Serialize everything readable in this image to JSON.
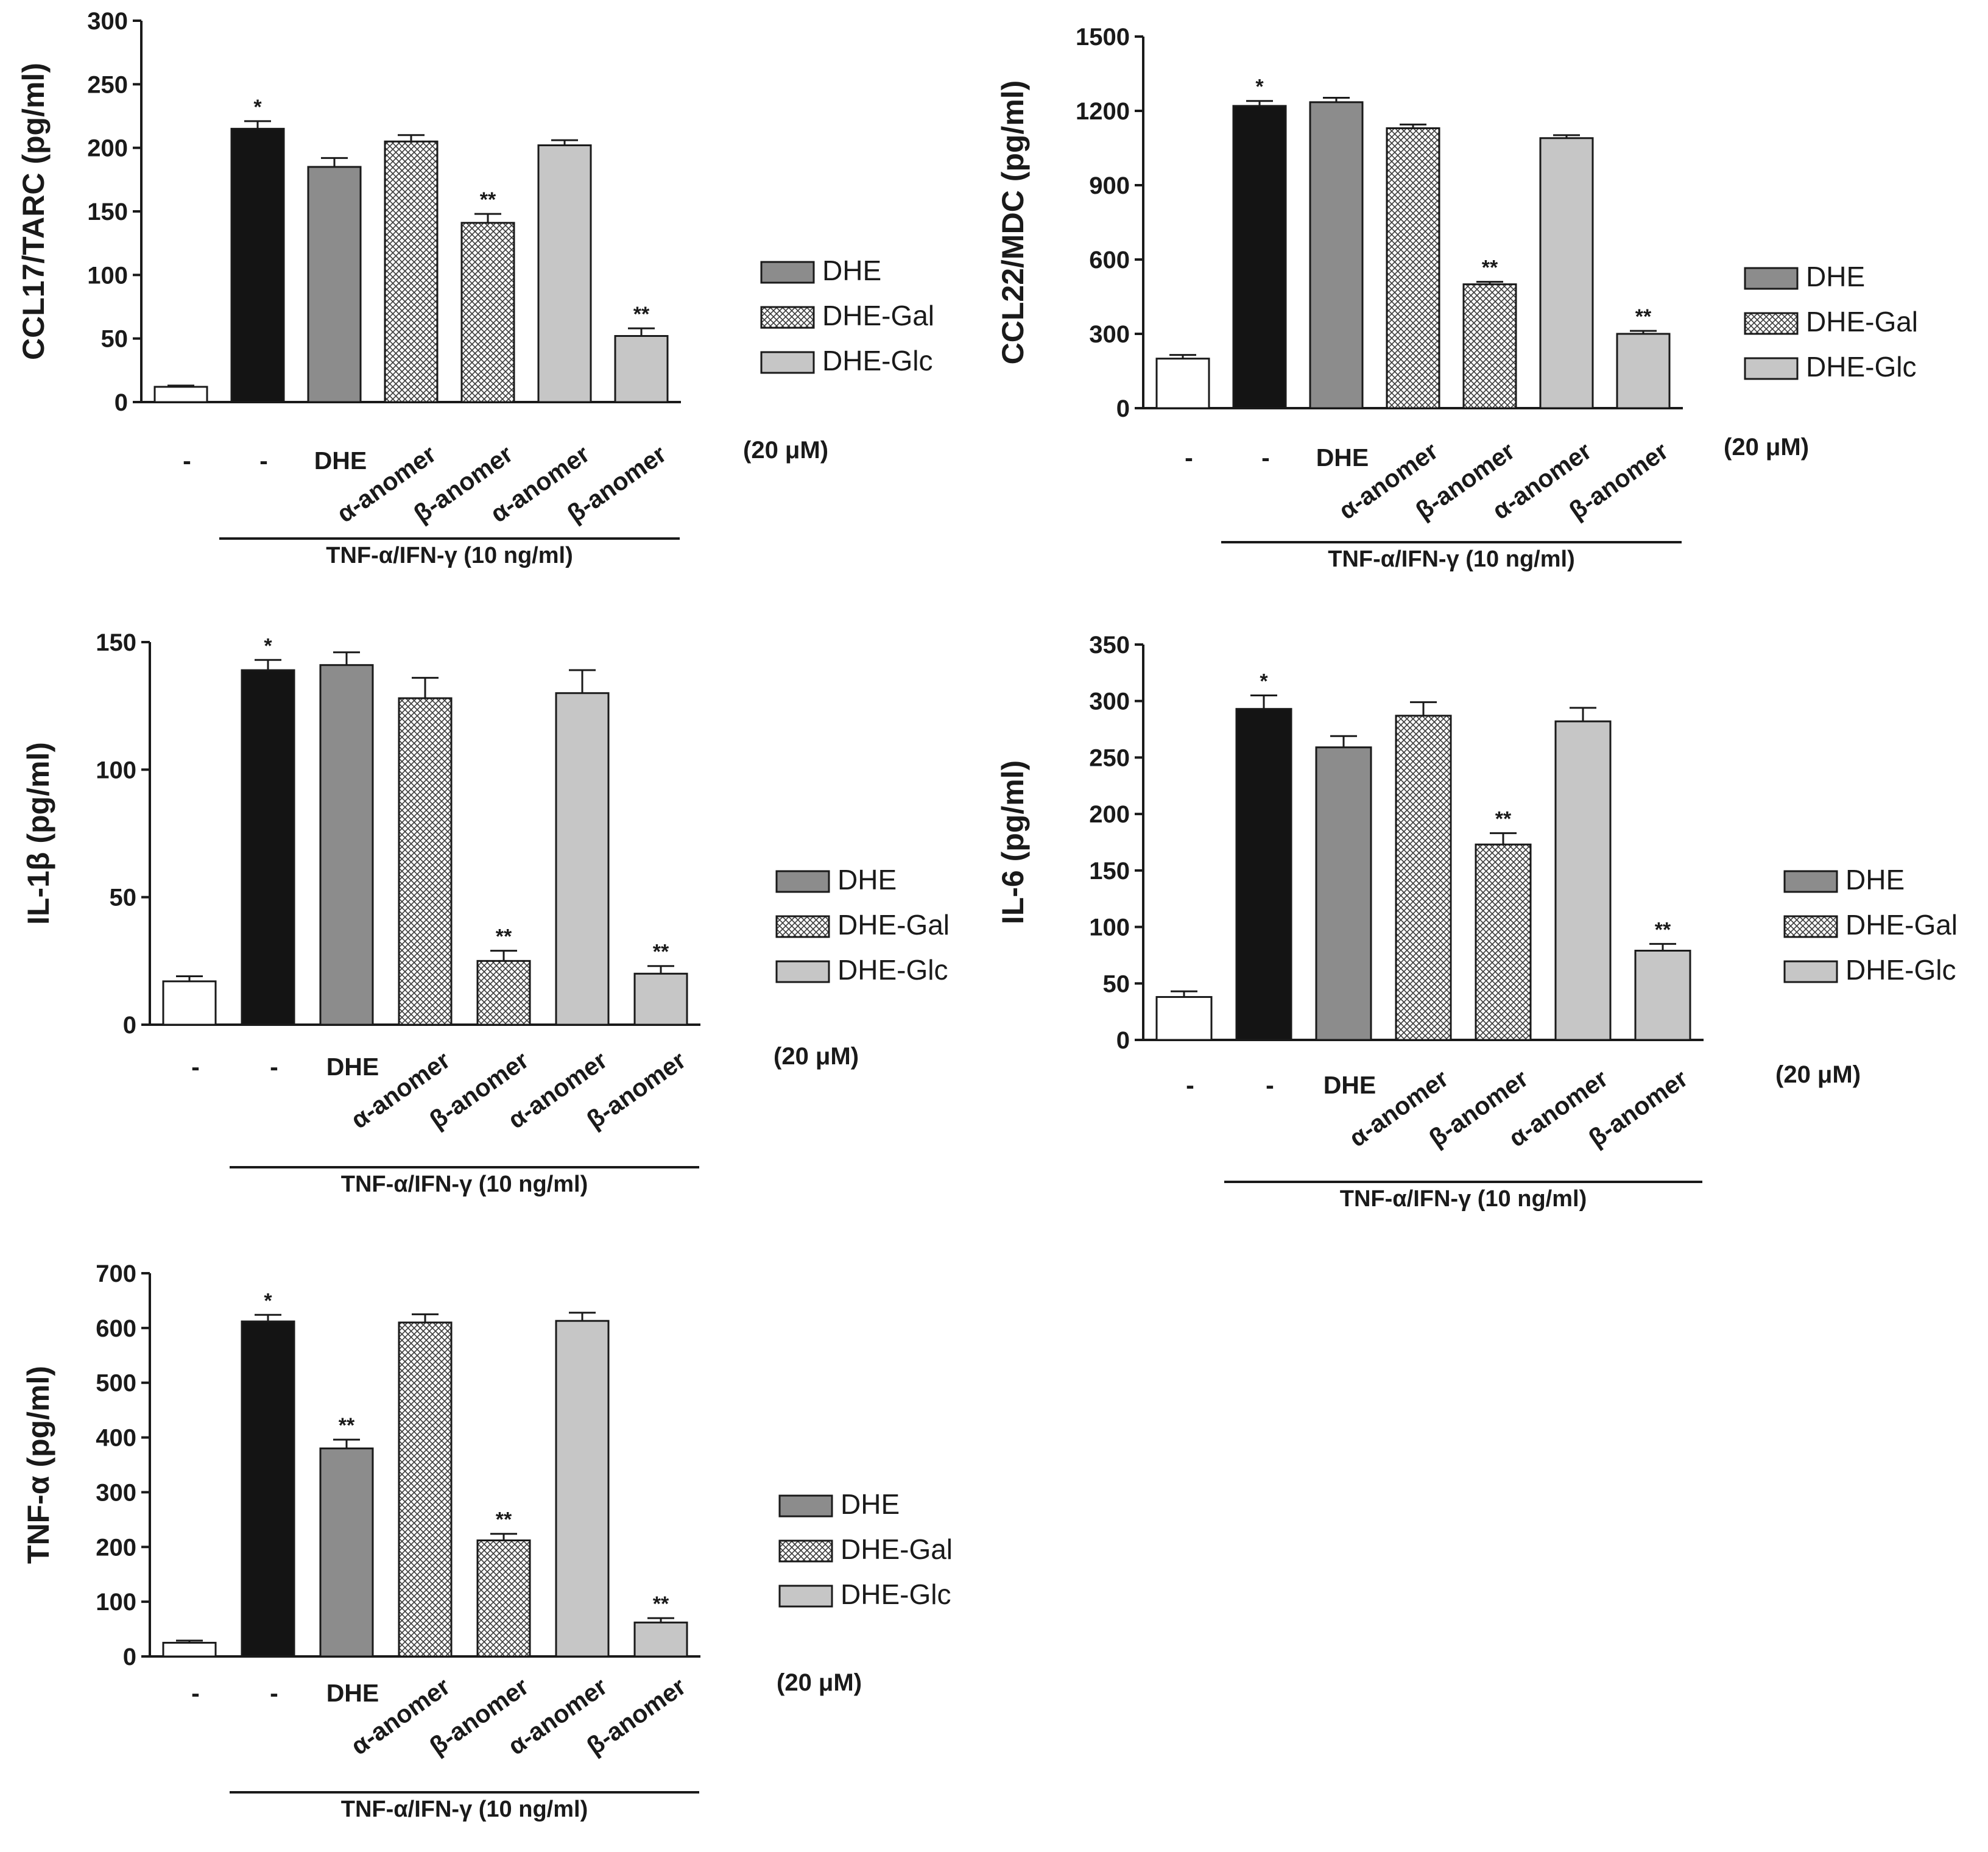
{
  "colors": {
    "control": "#ffffff",
    "tnf_ifn": "#141414",
    "DHE": "#8c8c8c",
    "DHE-Gal": "hatch",
    "DHE-Glc": "#c6c6c6",
    "axis": "#1a1a1a"
  },
  "legend": {
    "items": [
      "DHE",
      "DHE-Gal",
      "DHE-Glc"
    ]
  },
  "x_labels": {
    "categories": [
      "-",
      "-",
      "DHE",
      "α-anomer",
      "β-anomer",
      "α-anomer",
      "β-anomer"
    ],
    "concentration": "(20 μM)",
    "treatment": "TNF-α/IFN-γ (10 ng/ml)"
  },
  "chart_data": [
    {
      "type": "bar",
      "ylabel": "CCL17/TARC (pg/ml)",
      "ylim": [
        0,
        300
      ],
      "yticks": [
        0,
        50,
        100,
        150,
        200,
        250,
        300
      ],
      "categories": [
        "-",
        "-",
        "DHE",
        "α-anomer",
        "β-anomer",
        "α-anomer",
        "β-anomer"
      ],
      "groups": [
        "control",
        "tnf_ifn",
        "DHE",
        "DHE-Gal",
        "DHE-Gal",
        "DHE-Glc",
        "DHE-Glc"
      ],
      "values": [
        12,
        215,
        185,
        205,
        141,
        202,
        52
      ],
      "errors": [
        1,
        6,
        7,
        5,
        7,
        4,
        6
      ],
      "significance": [
        "",
        "*",
        "",
        "",
        "**",
        "",
        "**"
      ]
    },
    {
      "type": "bar",
      "ylabel": "CCL22/MDC (pg/ml)",
      "ylim": [
        0,
        1500
      ],
      "yticks": [
        0,
        300,
        600,
        900,
        1200,
        1500
      ],
      "categories": [
        "-",
        "-",
        "DHE",
        "α-anomer",
        "β-anomer",
        "α-anomer",
        "β-anomer"
      ],
      "groups": [
        "control",
        "tnf_ifn",
        "DHE",
        "DHE-Gal",
        "DHE-Gal",
        "DHE-Glc",
        "DHE-Glc"
      ],
      "values": [
        200,
        1220,
        1235,
        1130,
        500,
        1090,
        300
      ],
      "errors": [
        15,
        20,
        18,
        15,
        10,
        12,
        12
      ],
      "significance": [
        "",
        "*",
        "",
        "",
        "**",
        "",
        "**"
      ]
    },
    {
      "type": "bar",
      "ylabel": "IL-1β (pg/ml)",
      "ylim": [
        0,
        150
      ],
      "yticks": [
        0,
        50,
        100,
        150
      ],
      "categories": [
        "-",
        "-",
        "DHE",
        "α-anomer",
        "β-anomer",
        "α-anomer",
        "β-anomer"
      ],
      "groups": [
        "control",
        "tnf_ifn",
        "DHE",
        "DHE-Gal",
        "DHE-Gal",
        "DHE-Glc",
        "DHE-Glc"
      ],
      "values": [
        17,
        139,
        141,
        128,
        25,
        130,
        20
      ],
      "errors": [
        2,
        4,
        5,
        8,
        4,
        9,
        3
      ],
      "significance": [
        "",
        "*",
        "",
        "",
        "**",
        "",
        "**"
      ]
    },
    {
      "type": "bar",
      "ylabel": "IL-6 (pg/ml)",
      "ylim": [
        0,
        350
      ],
      "yticks": [
        0,
        50,
        100,
        150,
        200,
        250,
        300,
        350
      ],
      "categories": [
        "-",
        "-",
        "DHE",
        "α-anomer",
        "β-anomer",
        "α-anomer",
        "β-anomer"
      ],
      "groups": [
        "control",
        "tnf_ifn",
        "DHE",
        "DHE-Gal",
        "DHE-Gal",
        "DHE-Glc",
        "DHE-Glc"
      ],
      "values": [
        38,
        293,
        259,
        287,
        173,
        282,
        79
      ],
      "errors": [
        5,
        12,
        10,
        12,
        10,
        12,
        6
      ],
      "significance": [
        "",
        "*",
        "",
        "",
        "**",
        "",
        "**"
      ]
    },
    {
      "type": "bar",
      "ylabel": "TNF-α (pg/ml)",
      "ylim": [
        0,
        700
      ],
      "yticks": [
        0,
        100,
        200,
        300,
        400,
        500,
        600,
        700
      ],
      "categories": [
        "-",
        "-",
        "DHE",
        "α-anomer",
        "β-anomer",
        "α-anomer",
        "β-anomer"
      ],
      "groups": [
        "control",
        "tnf_ifn",
        "DHE",
        "DHE-Gal",
        "DHE-Gal",
        "DHE-Glc",
        "DHE-Glc"
      ],
      "values": [
        25,
        612,
        380,
        610,
        212,
        613,
        62
      ],
      "errors": [
        4,
        12,
        16,
        15,
        12,
        15,
        8
      ],
      "significance": [
        "",
        "*",
        "**",
        "",
        "**",
        "",
        "**"
      ]
    }
  ]
}
